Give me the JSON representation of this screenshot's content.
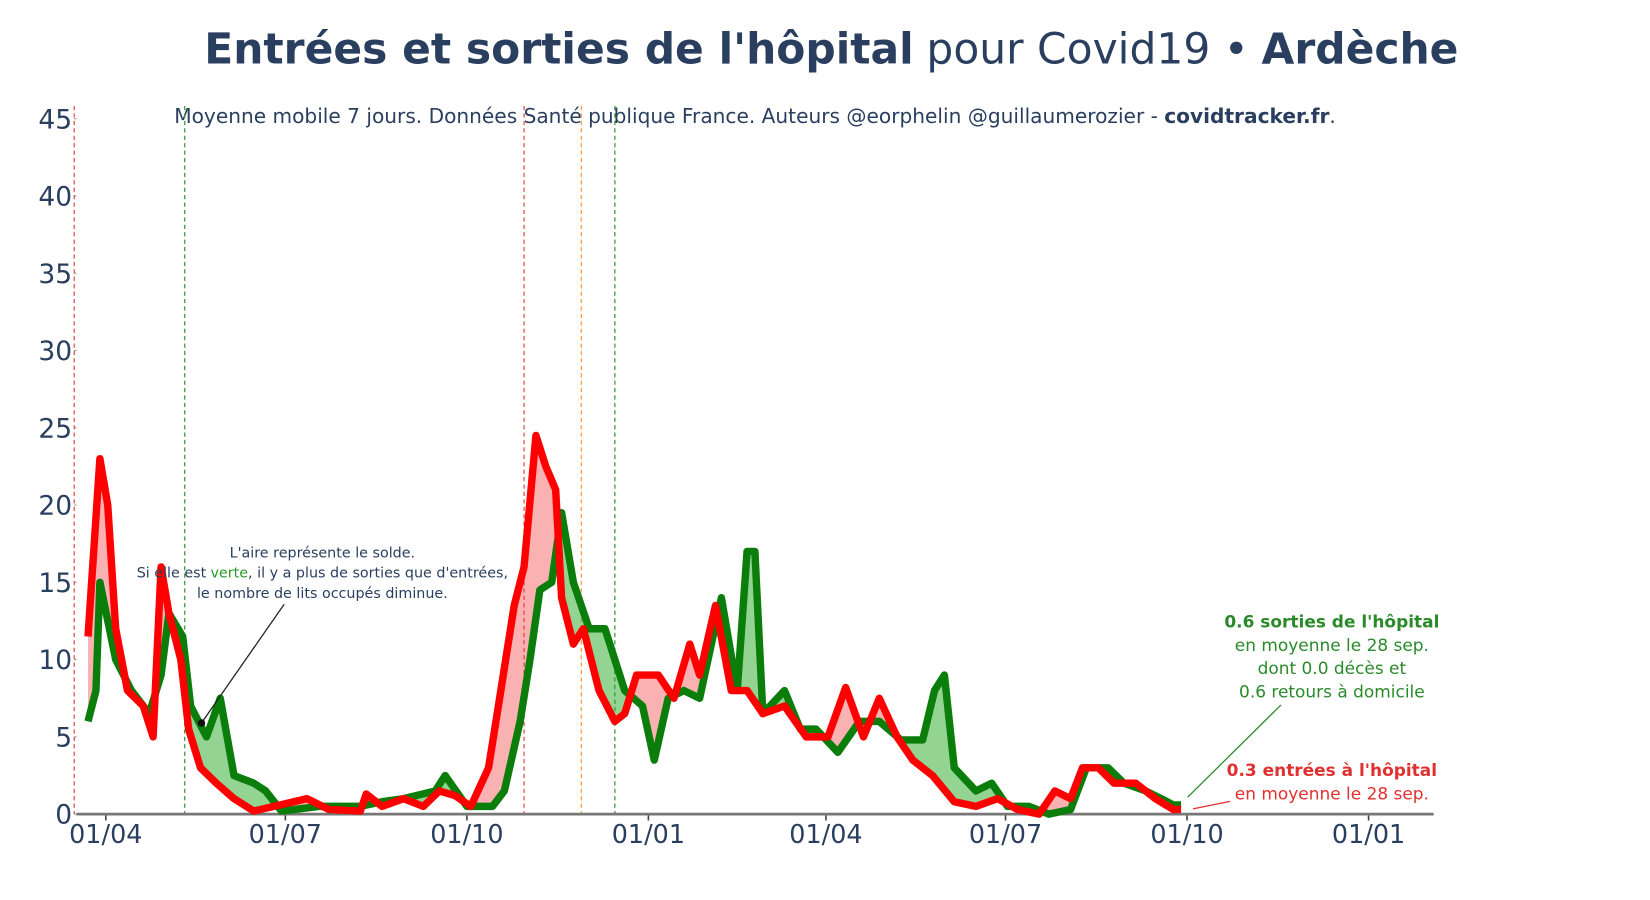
{
  "chart_data": {
    "type": "line",
    "title": [
      "Entrées et sorties de l'hôpital",
      "pour Covid19 •",
      "Ardèche"
    ],
    "subtitle": [
      "Moyenne mobile 7 jours. Données Santé publique France. Auteurs @eorphelin @guillaumerozier -",
      "covidtracker.fr",
      "."
    ],
    "xlim": [
      -16,
      673
    ],
    "xticks": [
      {
        "value": 0,
        "label": "01/04"
      },
      {
        "value": 91,
        "label": "01/07"
      },
      {
        "value": 183,
        "label": "01/10"
      },
      {
        "value": 275,
        "label": "01/01"
      },
      {
        "value": 365,
        "label": "01/04"
      },
      {
        "value": 456,
        "label": "01/07"
      },
      {
        "value": 548,
        "label": "01/10"
      },
      {
        "value": 640,
        "label": "01/01"
      }
    ],
    "ylim": [
      0,
      45
    ],
    "yticks": [
      0,
      5,
      10,
      15,
      20,
      25,
      30,
      35,
      40,
      45
    ],
    "vlines": [
      {
        "x": -16,
        "color": "#e05050"
      },
      {
        "x": 40,
        "color": "#3a9a3a"
      },
      {
        "x": 212,
        "color": "#e05050"
      },
      {
        "x": 241,
        "color": "#f0a040"
      },
      {
        "x": 258,
        "color": "#3a9a3a"
      }
    ],
    "series": [
      {
        "color": "#0a7d0a",
        "fill": "rgba(40,170,40,0.5)",
        "x": [
          -9,
          -5,
          -3,
          5,
          13,
          22,
          28,
          32,
          39,
          43,
          51,
          58,
          65,
          75,
          81,
          89,
          108,
          129,
          140,
          151,
          167,
          172,
          183,
          196,
          202,
          210,
          215,
          220,
          226,
          231,
          237,
          245,
          253,
          263,
          272,
          278,
          285,
          293,
          301,
          312,
          320,
          325,
          329,
          333,
          344,
          352,
          360,
          371,
          382,
          392,
          403,
          414,
          420,
          425,
          430,
          441,
          449,
          457,
          468,
          478,
          489,
          497,
          508,
          516,
          527,
          535,
          541,
          545
        ],
        "values": [
          6,
          8,
          15,
          10,
          8,
          6.5,
          9,
          13,
          11.5,
          7,
          5,
          7.5,
          2.5,
          2,
          1.5,
          0.2,
          0.5,
          0.5,
          0.8,
          1,
          1.5,
          2.5,
          0.5,
          0.5,
          1.5,
          6,
          10,
          14.5,
          15,
          19.5,
          15,
          12,
          12,
          8,
          7,
          3.5,
          7.5,
          8,
          7.5,
          14,
          8,
          17,
          17,
          6.5,
          8,
          5.5,
          5.5,
          4,
          6,
          6,
          4.8,
          4.8,
          8,
          9,
          3,
          1.5,
          2,
          0.5,
          0.5,
          0,
          0.3,
          3,
          3,
          2,
          1.5,
          1,
          0.6,
          0.6
        ]
      },
      {
        "color": "#ff0000",
        "fill": "rgba(240,60,60,0.4)",
        "x": [
          -9,
          -3,
          1,
          5,
          11,
          19,
          24,
          28,
          32,
          38,
          42,
          48,
          56,
          65,
          75,
          102,
          113,
          129,
          132,
          140,
          151,
          161,
          169,
          177,
          185,
          194,
          199,
          207,
          212,
          218,
          223,
          228,
          231,
          237,
          242,
          250,
          258,
          263,
          269,
          280,
          288,
          296,
          301,
          309,
          317,
          325,
          333,
          344,
          355,
          366,
          375,
          384,
          392,
          401,
          409,
          419,
          430,
          441,
          452,
          462,
          473,
          481,
          489,
          495,
          503,
          511,
          522,
          532,
          541,
          545
        ],
        "values": [
          11.5,
          23,
          20,
          12,
          8,
          7,
          5,
          16,
          13,
          10,
          5.5,
          3,
          2,
          1,
          0.2,
          1,
          0.3,
          0.2,
          1.3,
          0.5,
          1,
          0.5,
          1.5,
          1.2,
          0.5,
          3,
          7,
          13.5,
          16,
          24.5,
          22.5,
          21,
          14,
          11,
          12,
          8,
          6,
          6.5,
          9,
          9,
          7.5,
          11,
          9,
          13.5,
          8,
          8,
          6.5,
          7,
          5,
          5,
          8.2,
          5,
          7.5,
          5,
          3.5,
          2.5,
          0.8,
          0.5,
          1,
          0.3,
          0,
          1.5,
          1,
          3,
          3,
          2,
          2,
          1,
          0.3,
          0.3
        ]
      }
    ],
    "note": {
      "line1": "L'aire représente le solde.",
      "line2": [
        "Si elle est",
        "verte",
        ", il y a plus de sorties que d'entrées,"
      ],
      "line3": "le nombre de lits occupés diminue."
    },
    "out_note": [
      "0.6 sorties de l'hôpital",
      "en moyenne le 28 sep.",
      "dont 0.0 décès et",
      "0.6 retours à domicile"
    ],
    "in_note": [
      "0.3 entrées à l'hôpital",
      "en moyenne le 28 sep."
    ]
  }
}
